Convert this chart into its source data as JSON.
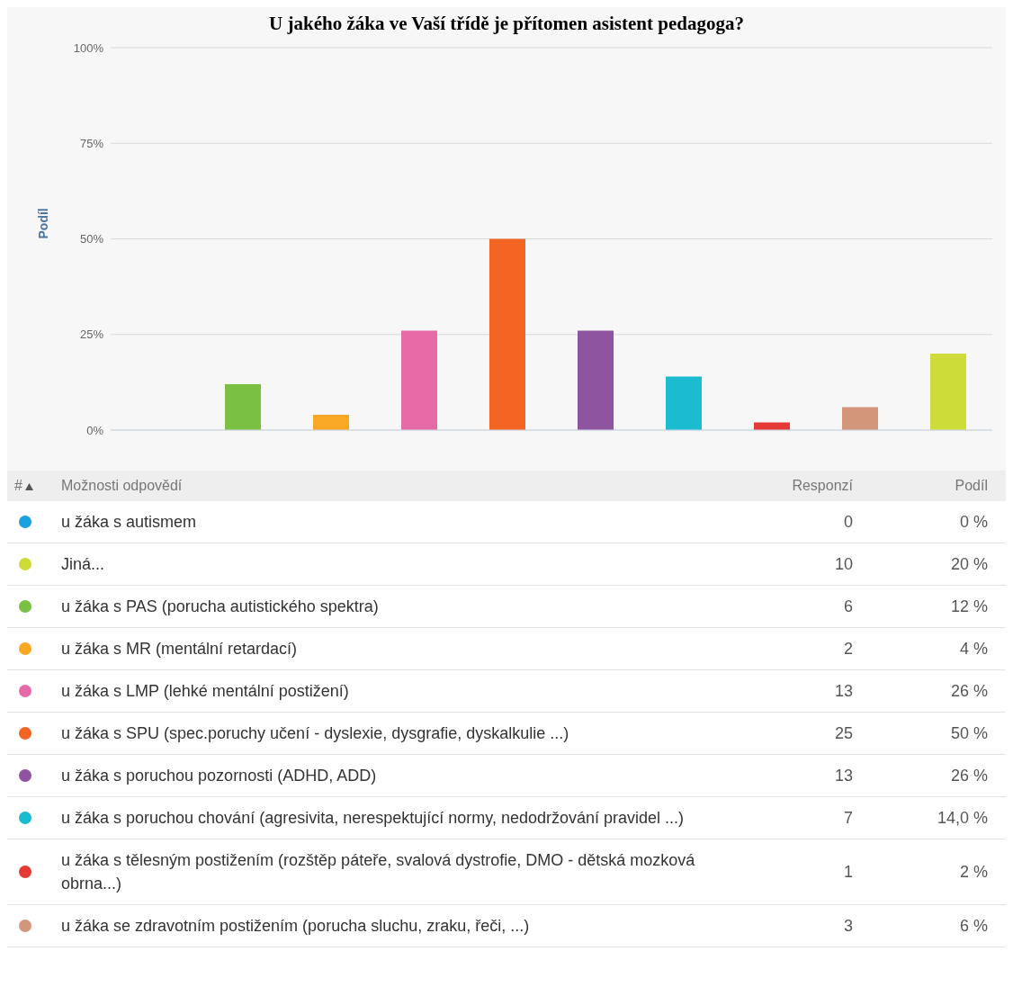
{
  "chart_data": [
    {
      "type": "bar",
      "title": "U jakého žáka ve Vaší třídě je přítomen asistent pedagoga?",
      "ylabel": "Podíl",
      "categories": [
        null,
        null,
        null,
        null,
        null,
        null,
        null,
        null,
        null,
        null
      ],
      "values": [
        0,
        12,
        4,
        26,
        50,
        26,
        14,
        2,
        6,
        20
      ],
      "colors": [
        "#1ba1e2",
        "#7ac143",
        "#f9a825",
        "#e56aa6",
        "#f26522",
        "#8e54a0",
        "#1bbcd0",
        "#e53935",
        "#d4967a",
        "#cddc39"
      ],
      "ylim": [
        0,
        100
      ],
      "yticks": [
        {
          "value": 0,
          "label": "0%"
        },
        {
          "value": 25,
          "label": "25%"
        },
        {
          "value": 50,
          "label": "50%"
        },
        {
          "value": 75,
          "label": "75%"
        },
        {
          "value": 100,
          "label": "100%"
        }
      ],
      "grid": "y",
      "tick_labels": "y"
    },
    {
      "type": "other",
      "categories": [
        "u žáka s autismem",
        "Jiná...",
        "u žáka s PAS (porucha autistického spektra)",
        "u žáka s MR (mentální retardací)",
        "u žáka s LMP (lehké mentální postižení)",
        "u žáka s SPU (spec.poruchy učení - dyslexie, dysgrafie, dyskalkulie ...)",
        "u žáka s poruchou pozornosti (ADHD, ADD)",
        "u žáka s poruchou chování (agresivita, nerespektující normy, nedodržování pravidel ...)",
        "u žáka s tělesným postižením (rozštěp páteře, svalová dystrofie, DMO - dětská mozková obrna...)",
        "u žáka se zdravotním postižením (porucha sluchu, zraku, řeči, ...)"
      ],
      "colors": [
        "#1ba1e2",
        "#cddc39",
        "#7ac143",
        "#f9a825",
        "#e56aa6",
        "#f26522",
        "#8e54a0",
        "#1bbcd0",
        "#e53935",
        "#d4967a"
      ],
      "series": [
        {
          "name": "Responzí",
          "values": [
            0,
            10,
            6,
            2,
            13,
            25,
            13,
            7,
            1,
            3
          ]
        },
        {
          "name": "Podíl",
          "values": [
            0,
            20,
            12,
            4,
            26,
            50,
            26,
            14,
            2,
            6
          ],
          "value_labels": [
            "0 %",
            "20 %",
            "12 %",
            "4 %",
            "26 %",
            "50 %",
            "26 %",
            "14,0 %",
            "2 %",
            "6 %"
          ]
        }
      ],
      "data_labels": true,
      "annotations": [
        "#",
        "Možnosti odpovědí"
      ]
    }
  ]
}
